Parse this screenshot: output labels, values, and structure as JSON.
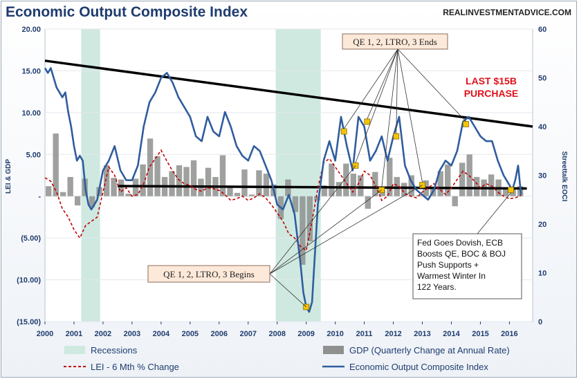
{
  "header": {
    "title": "Economic Output Composite Index",
    "site": "REALINVESTMENTADVICE.COM"
  },
  "axes": {
    "left_label": "LEI & GDP",
    "right_label": "Streettalk EOCI",
    "left_ticks": [
      "20.00",
      "15.00",
      "10.00",
      "5.00",
      "-",
      "(5.00)",
      "(10.00)",
      "(15.00)"
    ],
    "right_ticks": [
      "60",
      "50",
      "40",
      "30",
      "20",
      "10",
      "0"
    ],
    "x_ticks": [
      "2000",
      "2001",
      "2002",
      "2003",
      "2004",
      "2005",
      "2006",
      "2007",
      "2008",
      "2009",
      "2010",
      "2011",
      "2012",
      "2013",
      "2014",
      "2015",
      "2016"
    ]
  },
  "legend": {
    "recessions": "Recessions",
    "gdp": "GDP (Quarterly Change at Annual Rate)",
    "lei": "LEI - 6 Mth % Change",
    "eoci": "Economic Output Composite Index"
  },
  "annotations": {
    "qe_ends": "QE 1, 2, LTRO, 3 Ends",
    "qe_begins": "QE 1, 2, LTRO, 3 Begins",
    "last_line1": "LAST $15B",
    "last_line2": "PURCHASE",
    "fed_lines": [
      "Fed Goes Dovish, ECB",
      "Boosts QE, BOC & BOJ",
      "Push Supports +",
      "Warmest Winter In",
      "122 Years."
    ]
  },
  "colors": {
    "eoci": "#2f5c9e",
    "lei": "#c00000",
    "gdp": "#8e918e",
    "recession": "#cfe9e1",
    "trend": "#000000",
    "marker": "#f5c400"
  },
  "chart_data": {
    "type": "line",
    "x_range": [
      2000,
      2016.8
    ],
    "left_ylim": [
      -15,
      20
    ],
    "right_ylim": [
      0,
      60
    ],
    "recessions": [
      [
        2001.25,
        2001.9
      ],
      [
        2007.95,
        2009.5
      ]
    ],
    "series": [
      {
        "name": "Economic Output Composite Index",
        "axis": "right",
        "x": [
          2000.0,
          2000.1,
          2000.2,
          2000.3,
          2000.4,
          2000.5,
          2000.6,
          2000.7,
          2000.8,
          2000.9,
          2001.0,
          2001.1,
          2001.2,
          2001.3,
          2001.4,
          2001.5,
          2001.6,
          2001.7,
          2001.8,
          2001.9,
          2002.0,
          2002.2,
          2002.4,
          2002.6,
          2002.8,
          2003.0,
          2003.2,
          2003.4,
          2003.6,
          2003.8,
          2004.0,
          2004.2,
          2004.4,
          2004.6,
          2004.8,
          2005.0,
          2005.2,
          2005.4,
          2005.6,
          2005.8,
          2006.0,
          2006.2,
          2006.4,
          2006.6,
          2006.8,
          2007.0,
          2007.2,
          2007.4,
          2007.6,
          2007.8,
          2008.0,
          2008.2,
          2008.4,
          2008.6,
          2008.8,
          2008.9,
          2009.0,
          2009.1,
          2009.2,
          2009.3,
          2009.4,
          2009.6,
          2009.8,
          2010.0,
          2010.2,
          2010.4,
          2010.6,
          2010.8,
          2011.0,
          2011.2,
          2011.4,
          2011.6,
          2011.8,
          2012.0,
          2012.2,
          2012.4,
          2012.6,
          2012.8,
          2013.0,
          2013.2,
          2013.4,
          2013.6,
          2013.8,
          2014.0,
          2014.2,
          2014.4,
          2014.6,
          2014.8,
          2015.0,
          2015.2,
          2015.4,
          2015.6,
          2015.8,
          2016.0,
          2016.1,
          2016.2,
          2016.3,
          2016.4
        ],
        "values": [
          52,
          51,
          52,
          50,
          48,
          47,
          46,
          47,
          43,
          40,
          36,
          33,
          34,
          33,
          27,
          24,
          23,
          24,
          25,
          28,
          31,
          33,
          36,
          31,
          29,
          29,
          32,
          40,
          45,
          47,
          50,
          51,
          49,
          46,
          44,
          42,
          38,
          37,
          42,
          39,
          38,
          43,
          40,
          36,
          34,
          33,
          36,
          35,
          32,
          29,
          24,
          23,
          26,
          22,
          12,
          6,
          3,
          2,
          4,
          14,
          24,
          33,
          37,
          33,
          42,
          36,
          31,
          42,
          40,
          33,
          35,
          38,
          33,
          38,
          42,
          32,
          29,
          27,
          26,
          25,
          27,
          31,
          33,
          32,
          35,
          41,
          42,
          40,
          38,
          37,
          37,
          33,
          30,
          28,
          27,
          29,
          32,
          26
        ]
      },
      {
        "name": "LEI - 6 Mth % Change",
        "axis": "left",
        "x": [
          2000.0,
          2000.2,
          2000.4,
          2000.6,
          2000.8,
          2001.0,
          2001.2,
          2001.4,
          2001.6,
          2001.8,
          2002.0,
          2002.2,
          2002.4,
          2002.6,
          2002.8,
          2003.0,
          2003.2,
          2003.4,
          2003.6,
          2003.8,
          2004.0,
          2004.2,
          2004.4,
          2004.6,
          2004.8,
          2005.0,
          2005.2,
          2005.4,
          2005.6,
          2005.8,
          2006.0,
          2006.2,
          2006.4,
          2006.6,
          2006.8,
          2007.0,
          2007.2,
          2007.4,
          2007.6,
          2007.8,
          2008.0,
          2008.2,
          2008.4,
          2008.6,
          2008.8,
          2009.0,
          2009.2,
          2009.4,
          2009.6,
          2009.8,
          2010.0,
          2010.2,
          2010.4,
          2010.6,
          2010.8,
          2011.0,
          2011.2,
          2011.4,
          2011.6,
          2011.8,
          2012.0,
          2012.2,
          2012.4,
          2012.6,
          2012.8,
          2013.0,
          2013.2,
          2013.4,
          2013.6,
          2013.8,
          2014.0,
          2014.2,
          2014.4,
          2014.6,
          2014.8,
          2015.0,
          2015.2,
          2015.4,
          2015.6,
          2015.8,
          2016.0,
          2016.2,
          2016.4
        ],
        "values": [
          2.2,
          1.8,
          0.5,
          -1.5,
          -2.5,
          -4.0,
          -5.0,
          -3.5,
          -3.0,
          -2.5,
          0.5,
          3.5,
          2.5,
          0.5,
          1.0,
          0.0,
          0.2,
          1.5,
          3.5,
          4.5,
          5.5,
          4.2,
          3.0,
          2.0,
          1.5,
          1.3,
          0.8,
          0.6,
          1.0,
          0.9,
          0.7,
          0.2,
          -0.5,
          -0.3,
          0.0,
          -0.5,
          -0.2,
          0.3,
          -0.2,
          -1.0,
          -2.0,
          -3.0,
          -4.5,
          -5.0,
          -6.0,
          -6.5,
          -3.0,
          1.0,
          4.0,
          4.5,
          3.5,
          2.5,
          1.5,
          0.5,
          1.5,
          3.0,
          2.5,
          1.2,
          -0.5,
          0.0,
          1.5,
          1.2,
          0.3,
          0.0,
          -0.2,
          0.5,
          1.0,
          1.5,
          0.8,
          0.2,
          1.0,
          2.0,
          3.0,
          2.5,
          1.8,
          1.0,
          1.5,
          1.2,
          0.5,
          0.0,
          -0.3,
          -0.2,
          0.1
        ]
      },
      {
        "name": "GDP (Quarterly Change at Annual Rate)",
        "axis": "left",
        "type": "bar",
        "x": [
          2000.0,
          2000.25,
          2000.5,
          2000.75,
          2001.0,
          2001.25,
          2001.5,
          2001.75,
          2002.0,
          2002.25,
          2002.5,
          2002.75,
          2003.0,
          2003.25,
          2003.5,
          2003.75,
          2004.0,
          2004.25,
          2004.5,
          2004.75,
          2005.0,
          2005.25,
          2005.5,
          2005.75,
          2006.0,
          2006.25,
          2006.5,
          2006.75,
          2007.0,
          2007.25,
          2007.5,
          2007.75,
          2008.0,
          2008.25,
          2008.5,
          2008.75,
          2009.0,
          2009.25,
          2009.5,
          2009.75,
          2010.0,
          2010.25,
          2010.5,
          2010.75,
          2011.0,
          2011.25,
          2011.5,
          2011.75,
          2012.0,
          2012.25,
          2012.5,
          2012.75,
          2013.0,
          2013.25,
          2013.5,
          2013.75,
          2014.0,
          2014.25,
          2014.5,
          2014.75,
          2015.0,
          2015.25,
          2015.5,
          2015.75,
          2016.0,
          2016.25
        ],
        "values": [
          1.2,
          7.5,
          0.5,
          2.3,
          -1.1,
          2.1,
          -1.3,
          1.1,
          3.7,
          2.2,
          2.0,
          0.3,
          2.1,
          3.8,
          6.9,
          4.8,
          2.3,
          3.0,
          3.7,
          3.5,
          4.3,
          2.1,
          3.4,
          2.3,
          4.9,
          1.2,
          0.4,
          3.2,
          0.2,
          3.1,
          2.7,
          1.4,
          -2.7,
          2.0,
          -1.9,
          -8.2,
          -5.4,
          -0.5,
          1.3,
          3.9,
          1.7,
          3.9,
          2.7,
          2.5,
          -1.5,
          2.9,
          0.8,
          4.6,
          2.3,
          1.6,
          2.5,
          0.1,
          1.9,
          1.1,
          3.0,
          3.8,
          -1.2,
          4.0,
          5.0,
          2.3,
          2.0,
          2.6,
          2.0,
          0.9,
          0.8,
          1.2
        ]
      }
    ],
    "markers": {
      "axis": "right",
      "points": [
        [
          2010.3,
          39
        ],
        [
          2010.7,
          32
        ],
        [
          2011.1,
          41
        ],
        [
          2011.6,
          27
        ],
        [
          2012.1,
          38
        ],
        [
          2013.0,
          28
        ],
        [
          2009.0,
          3
        ],
        [
          2014.5,
          40.5
        ],
        [
          2016.05,
          27
        ]
      ]
    },
    "trend_lines": [
      {
        "axis": "right",
        "from": [
          2000.0,
          53.5
        ],
        "to": [
          2016.8,
          40.0
        ]
      },
      {
        "axis": "right",
        "from": [
          2002.5,
          27.8
        ],
        "to": [
          2016.6,
          27.3
        ]
      }
    ]
  }
}
